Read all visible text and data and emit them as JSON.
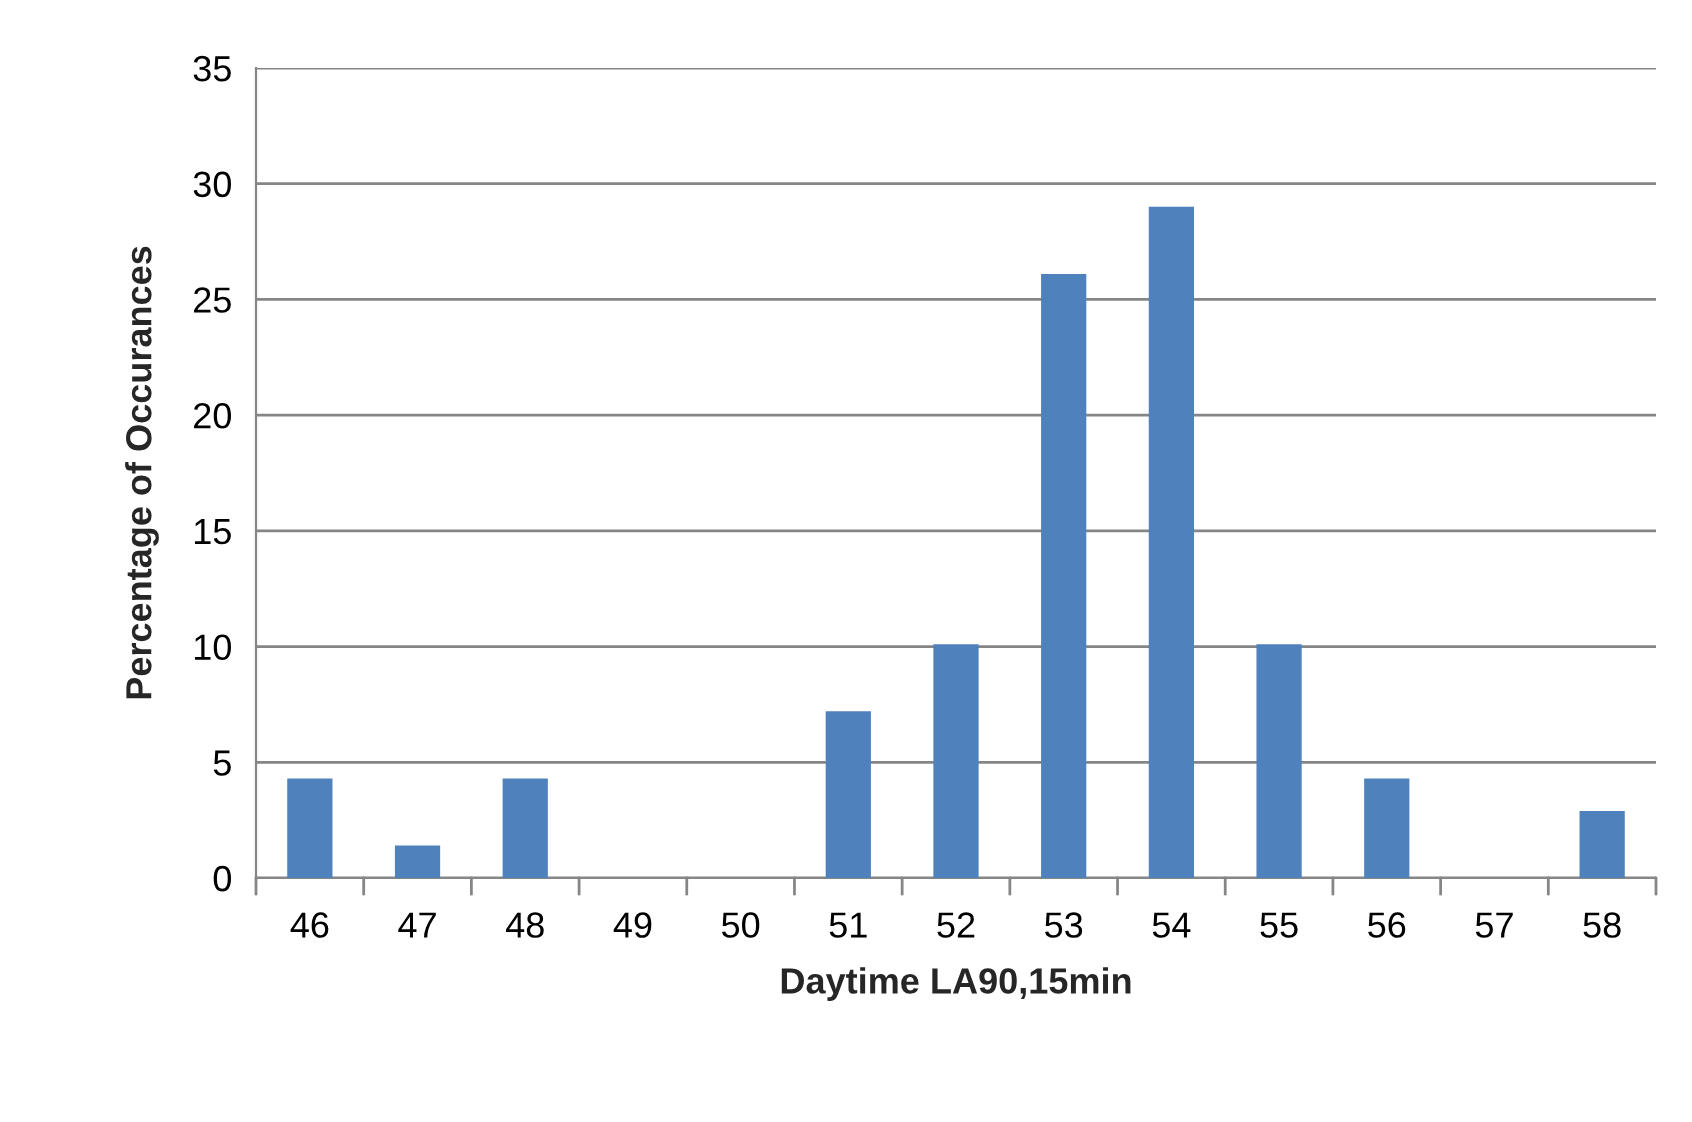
{
  "chart_data": {
    "type": "bar",
    "xlabel": "Daytime LA90,15min",
    "ylabel": "Percentage of Occurances",
    "categories": [
      "46",
      "47",
      "48",
      "49",
      "50",
      "51",
      "52",
      "53",
      "54",
      "55",
      "56",
      "57",
      "58"
    ],
    "values": [
      4.3,
      1.4,
      4.3,
      0,
      0,
      7.2,
      10.1,
      26.1,
      29.0,
      10.1,
      4.3,
      0,
      2.9
    ],
    "color": "#4f81bd",
    "ylim": [
      0,
      35
    ],
    "yticks": [
      0,
      5,
      10,
      15,
      20,
      25,
      30,
      35
    ],
    "grid": "y",
    "legend": false
  }
}
